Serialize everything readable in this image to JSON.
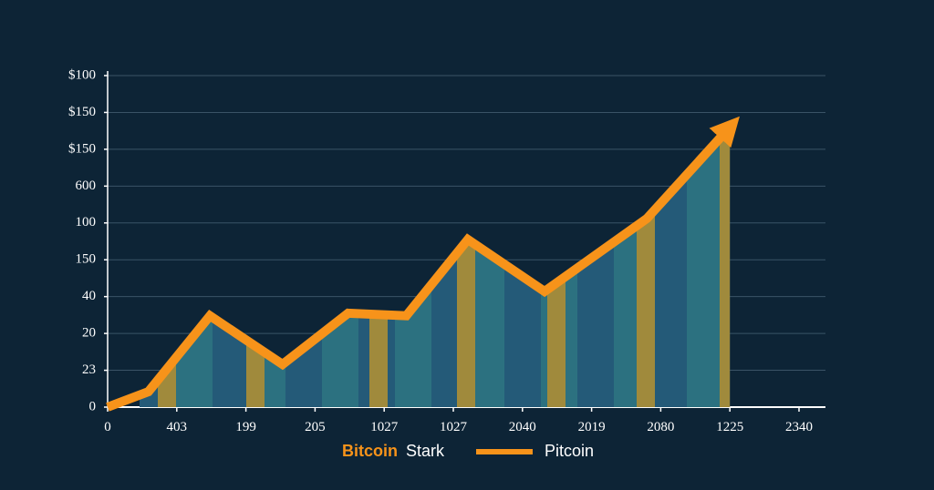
{
  "chart_data": {
    "type": "line",
    "yaxis_labels": [
      "0",
      "23",
      "20",
      "40",
      "150",
      "100",
      "600",
      "$150",
      "$150",
      "$100"
    ],
    "categories": [
      "0",
      "403",
      "199",
      "205",
      "1027",
      "1027",
      "2040",
      "2019",
      "2080",
      "1225",
      "2340"
    ],
    "xlim": [
      0,
      10
    ],
    "ylim": [
      0,
      9
    ],
    "series": [
      {
        "name": "Pitcoin",
        "color": "#f7931a",
        "x": [
          0,
          0.59,
          1.48,
          2.53,
          3.48,
          4.32,
          5.21,
          6.32,
          7.8,
          9.0
        ],
        "values": [
          0,
          0.42,
          2.48,
          1.16,
          2.55,
          2.48,
          4.55,
          3.14,
          5.12,
          7.6
        ]
      }
    ],
    "legend": {
      "bold": "Bitcoin",
      "rest": "Stark",
      "line": "Pitcoin"
    },
    "grid": true
  }
}
